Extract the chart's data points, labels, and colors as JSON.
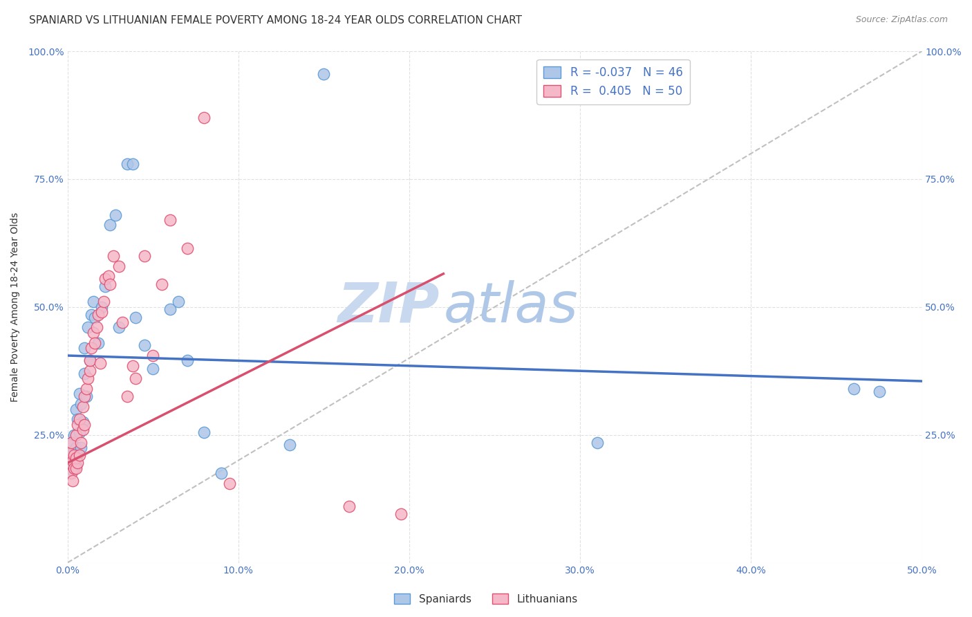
{
  "title": "SPANIARD VS LITHUANIAN FEMALE POVERTY AMONG 18-24 YEAR OLDS CORRELATION CHART",
  "source": "Source: ZipAtlas.com",
  "ylabel": "Female Poverty Among 18-24 Year Olds",
  "xlim": [
    0.0,
    0.5
  ],
  "ylim": [
    0.0,
    1.0
  ],
  "xticks": [
    0.0,
    0.1,
    0.2,
    0.3,
    0.4,
    0.5
  ],
  "yticks": [
    0.0,
    0.25,
    0.5,
    0.75,
    1.0
  ],
  "xtick_labels": [
    "0.0%",
    "10.0%",
    "20.0%",
    "30.0%",
    "40.0%",
    "50.0%"
  ],
  "ytick_labels_left": [
    "",
    "25.0%",
    "50.0%",
    "75.0%",
    "100.0%"
  ],
  "ytick_labels_right": [
    "",
    "25.0%",
    "50.0%",
    "75.0%",
    "100.0%"
  ],
  "legend_r_spaniards": "-0.037",
  "legend_n_spaniards": "46",
  "legend_r_lithuanians": "0.405",
  "legend_n_lithuanians": "50",
  "color_spaniards": "#aec6e8",
  "color_lithuanians": "#f5b8c8",
  "color_edge_spaniards": "#5b9bd5",
  "color_edge_lithuanians": "#e05070",
  "color_line_spaniards": "#4472c4",
  "color_line_lithuanians": "#d94f6e",
  "watermark_zip": "#c8d8ee",
  "watermark_atlas": "#b0c8e8",
  "background_color": "#ffffff",
  "grid_color": "#dddddd",
  "title_fontsize": 11,
  "axis_label_fontsize": 10,
  "tick_fontsize": 10,
  "blue_line_x0": 0.0,
  "blue_line_y0": 0.405,
  "blue_line_x1": 0.5,
  "blue_line_y1": 0.355,
  "pink_line_x0": 0.0,
  "pink_line_y0": 0.195,
  "pink_line_x1": 0.22,
  "pink_line_y1": 0.565,
  "spaniards_x": [
    0.001,
    0.002,
    0.002,
    0.003,
    0.003,
    0.004,
    0.004,
    0.005,
    0.005,
    0.005,
    0.006,
    0.006,
    0.007,
    0.007,
    0.008,
    0.008,
    0.009,
    0.01,
    0.01,
    0.011,
    0.012,
    0.013,
    0.014,
    0.015,
    0.016,
    0.018,
    0.02,
    0.022,
    0.025,
    0.028,
    0.03,
    0.035,
    0.038,
    0.04,
    0.045,
    0.05,
    0.06,
    0.065,
    0.07,
    0.08,
    0.09,
    0.13,
    0.15,
    0.31,
    0.46,
    0.475
  ],
  "spaniards_y": [
    0.195,
    0.215,
    0.235,
    0.18,
    0.2,
    0.22,
    0.25,
    0.19,
    0.225,
    0.3,
    0.21,
    0.28,
    0.255,
    0.33,
    0.225,
    0.31,
    0.275,
    0.37,
    0.42,
    0.325,
    0.46,
    0.395,
    0.485,
    0.51,
    0.48,
    0.43,
    0.5,
    0.54,
    0.66,
    0.68,
    0.46,
    0.78,
    0.78,
    0.48,
    0.425,
    0.38,
    0.495,
    0.51,
    0.395,
    0.255,
    0.175,
    0.23,
    0.955,
    0.235,
    0.34,
    0.335
  ],
  "lithuanians_x": [
    0.001,
    0.001,
    0.002,
    0.002,
    0.003,
    0.003,
    0.004,
    0.004,
    0.005,
    0.005,
    0.005,
    0.006,
    0.006,
    0.007,
    0.007,
    0.008,
    0.009,
    0.009,
    0.01,
    0.01,
    0.011,
    0.012,
    0.013,
    0.013,
    0.014,
    0.015,
    0.016,
    0.017,
    0.018,
    0.019,
    0.02,
    0.021,
    0.022,
    0.024,
    0.025,
    0.027,
    0.03,
    0.032,
    0.035,
    0.038,
    0.04,
    0.045,
    0.05,
    0.055,
    0.06,
    0.07,
    0.08,
    0.095,
    0.165,
    0.195
  ],
  "lithuanians_y": [
    0.195,
    0.215,
    0.175,
    0.235,
    0.16,
    0.2,
    0.185,
    0.21,
    0.185,
    0.205,
    0.25,
    0.195,
    0.27,
    0.21,
    0.28,
    0.235,
    0.26,
    0.305,
    0.27,
    0.325,
    0.34,
    0.36,
    0.375,
    0.395,
    0.42,
    0.45,
    0.43,
    0.46,
    0.485,
    0.39,
    0.49,
    0.51,
    0.555,
    0.56,
    0.545,
    0.6,
    0.58,
    0.47,
    0.325,
    0.385,
    0.36,
    0.6,
    0.405,
    0.545,
    0.67,
    0.615,
    0.87,
    0.155,
    0.11,
    0.095
  ]
}
